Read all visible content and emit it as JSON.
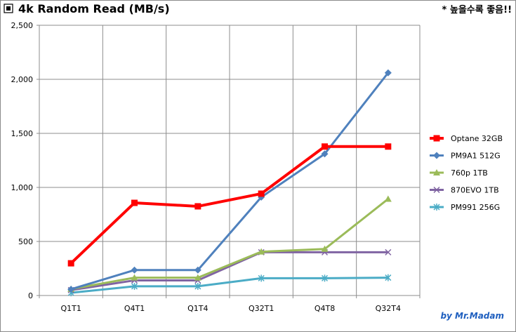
{
  "title": "4k Random Read (MB/s)",
  "note": "* 높을수록 좋음!!",
  "credit": "by Mr.Madam",
  "chart_data": {
    "type": "line",
    "title": "4k Random Read (MB/s)",
    "categories": [
      "Q1T1",
      "Q4T1",
      "Q1T4",
      "Q32T1",
      "Q4T8",
      "Q32T4"
    ],
    "y_tick_labels": [
      "0",
      "500",
      "1,000",
      "1,500",
      "2,000",
      "2,500"
    ],
    "ylim": [
      0,
      2500
    ],
    "grid": true,
    "legend_position": "right",
    "series": [
      {
        "name": "Optane 32GB",
        "color": "#ff0000",
        "marker": "square",
        "values": [
          298,
          857,
          825,
          942,
          1378,
          1378
        ]
      },
      {
        "name": "PM9A1 512G",
        "color": "#4f81bd",
        "marker": "diamond",
        "values": [
          58,
          235,
          235,
          910,
          1310,
          2060
        ]
      },
      {
        "name": "760p 1TB",
        "color": "#9bbb59",
        "marker": "triangle",
        "values": [
          60,
          165,
          165,
          405,
          430,
          893
        ]
      },
      {
        "name": "870EVO 1TB",
        "color": "#8064a2",
        "marker": "x",
        "values": [
          50,
          140,
          140,
          400,
          400,
          400
        ]
      },
      {
        "name": "PM991 256G",
        "color": "#4bacc6",
        "marker": "star",
        "values": [
          25,
          85,
          85,
          160,
          160,
          165
        ]
      }
    ]
  }
}
